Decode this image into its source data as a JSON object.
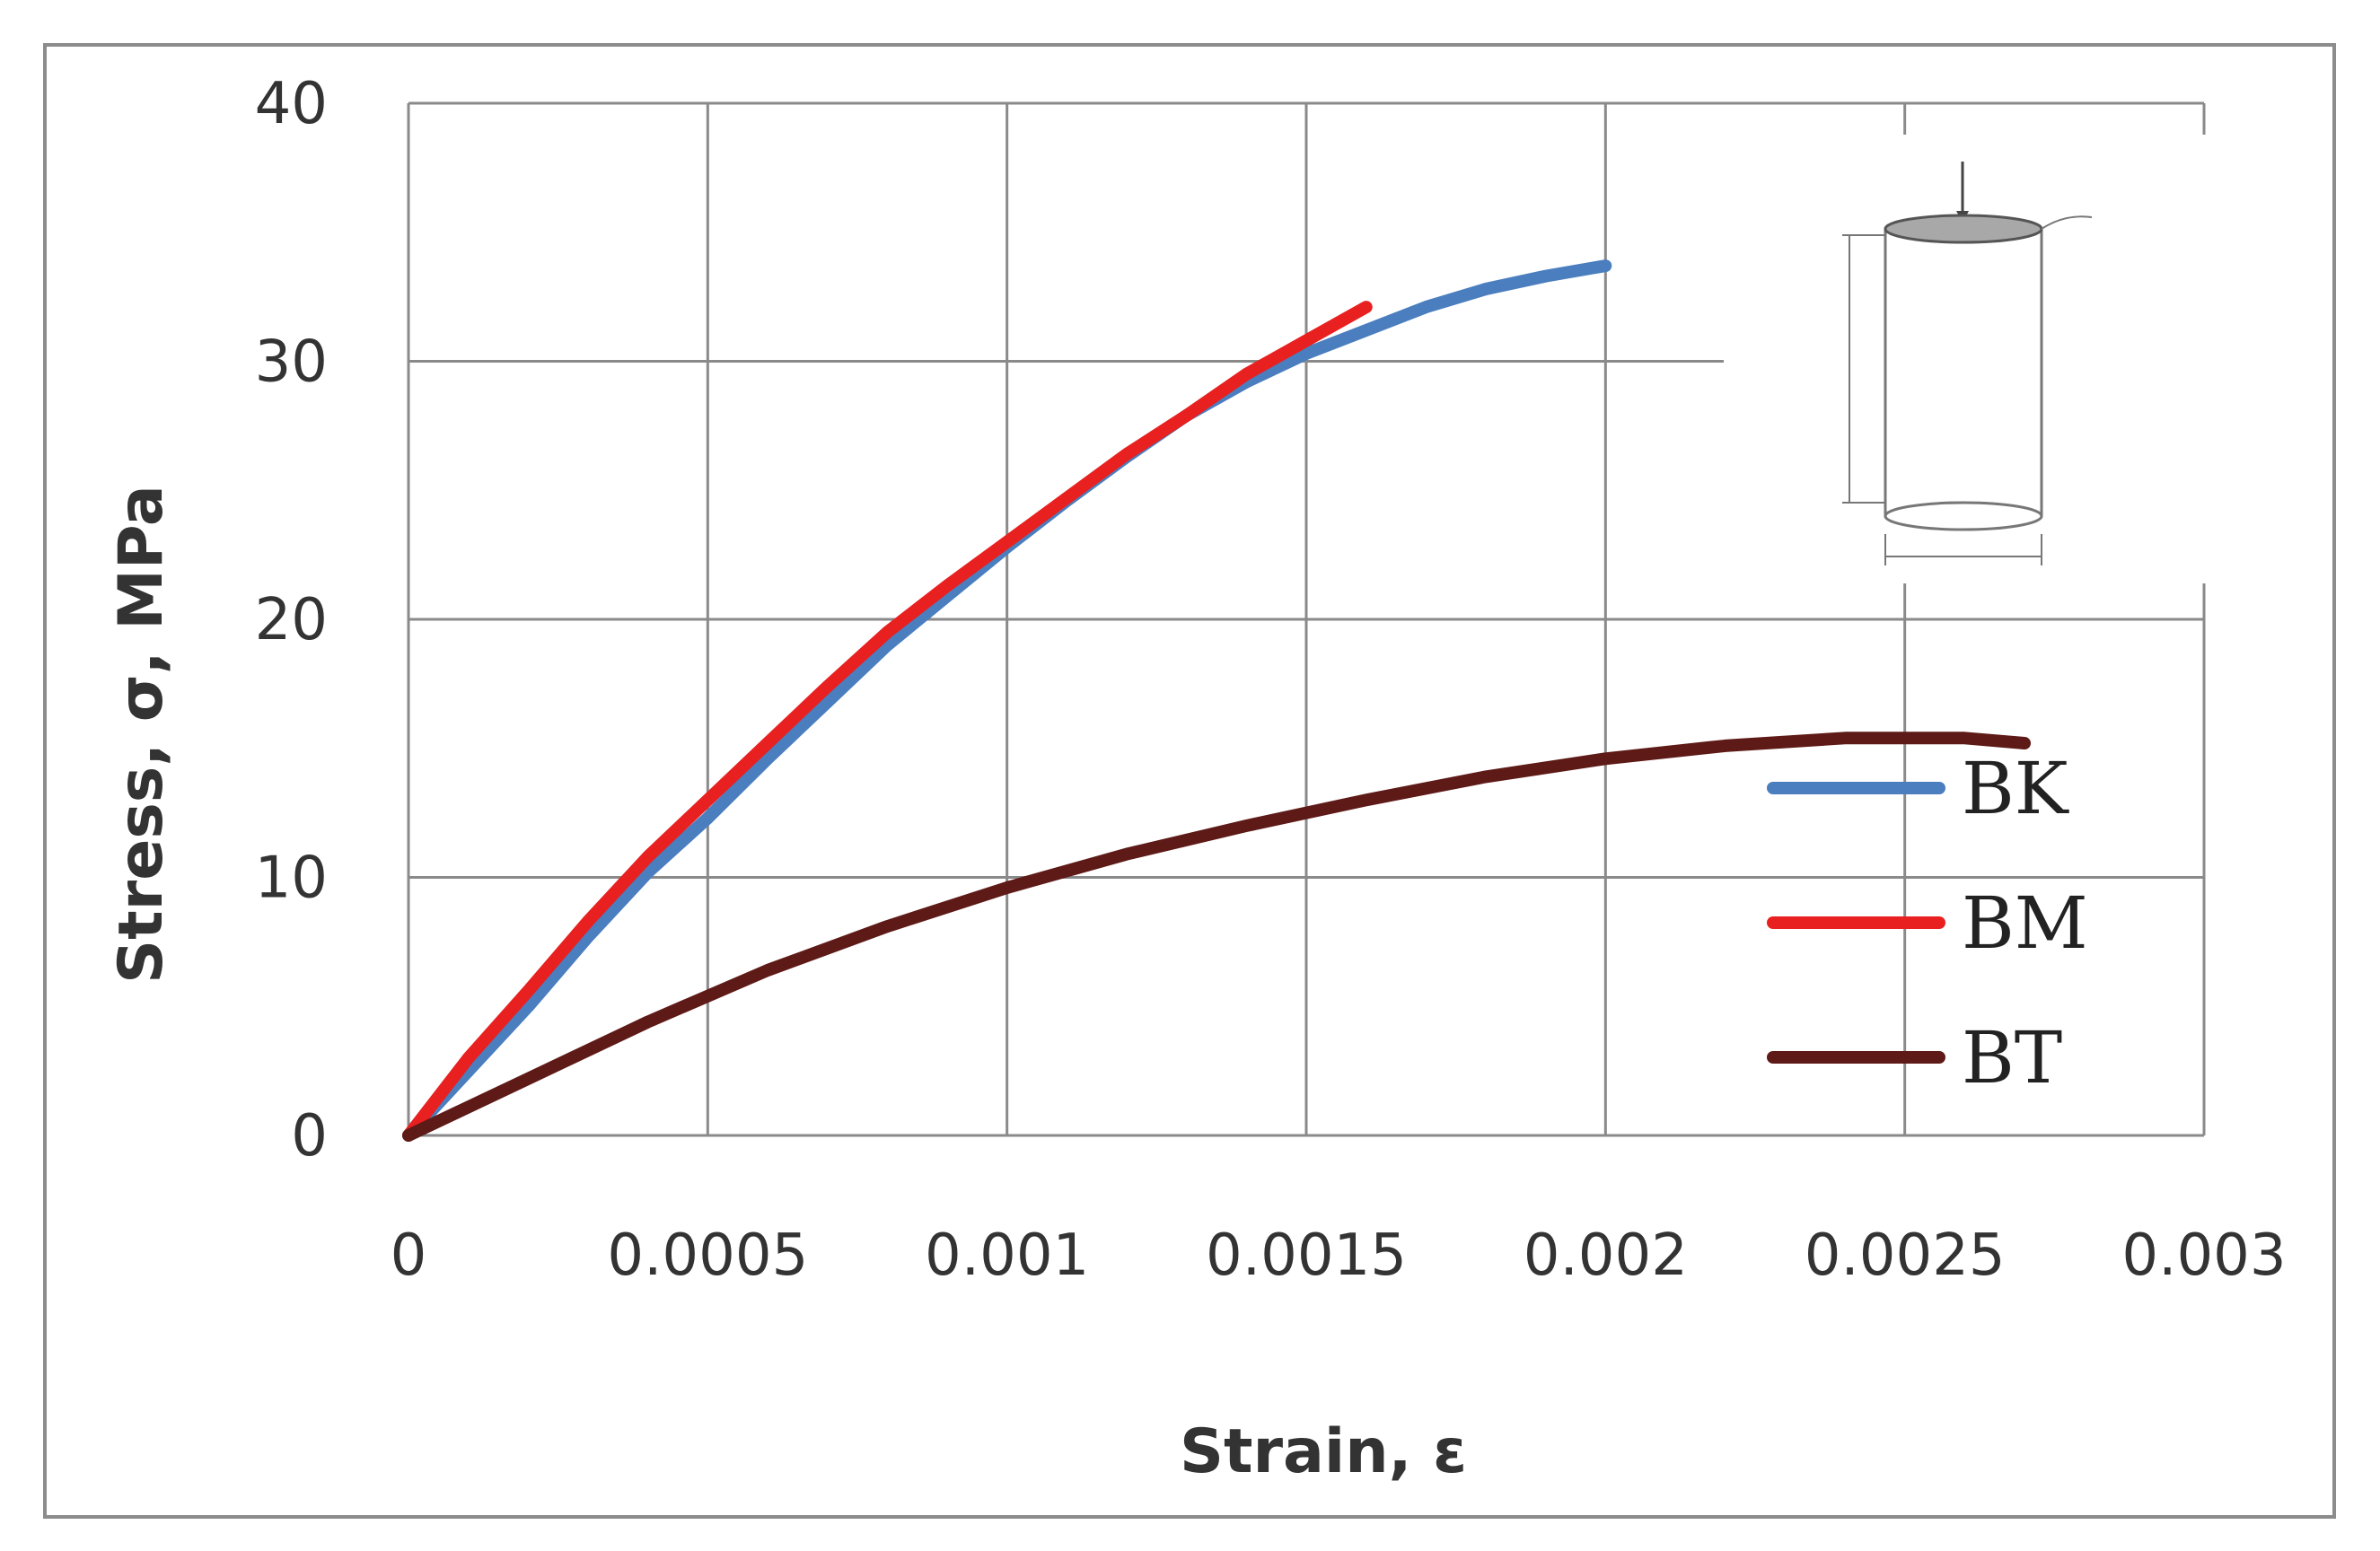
{
  "chart_data": {
    "type": "line",
    "xlabel": "Strain, ε",
    "ylabel": "Stress, σ, MPa",
    "xlim": [
      0,
      0.003
    ],
    "ylim": [
      0,
      40
    ],
    "x_ticks": [
      "0",
      "0.0005",
      "0.001",
      "0.0015",
      "0.002",
      "0.0025",
      "0.003"
    ],
    "y_ticks": [
      "0",
      "10",
      "20",
      "30",
      "40"
    ],
    "grid": true,
    "legend_position": "right",
    "series": [
      {
        "name": "BK",
        "color": "#4a7ebf",
        "x": [
          0,
          0.0001,
          0.0002,
          0.0003,
          0.0004,
          0.0005,
          0.0006,
          0.0007,
          0.0008,
          0.0009,
          0.001,
          0.0011,
          0.0012,
          0.0013,
          0.0014,
          0.0015,
          0.0016,
          0.0017,
          0.0018,
          0.0019,
          0.002
        ],
        "y": [
          0,
          2.5,
          5,
          7.7,
          10.2,
          12.3,
          14.6,
          16.8,
          19.0,
          20.9,
          22.8,
          24.6,
          26.3,
          27.9,
          29.2,
          30.3,
          31.2,
          32.1,
          32.8,
          33.3,
          33.7
        ]
      },
      {
        "name": "BM",
        "color": "#e82020",
        "x": [
          0,
          0.0001,
          0.0002,
          0.0003,
          0.0004,
          0.0005,
          0.0006,
          0.0007,
          0.0008,
          0.0009,
          0.001,
          0.0011,
          0.0012,
          0.0013,
          0.0014,
          0.0015,
          0.0016
        ],
        "y": [
          0,
          3.0,
          5.6,
          8.3,
          10.8,
          13.0,
          15.2,
          17.4,
          19.5,
          21.3,
          23.0,
          24.7,
          26.4,
          27.9,
          29.5,
          30.8,
          32.1
        ]
      },
      {
        "name": "BT",
        "color": "#5e1a17",
        "x": [
          0,
          0.0002,
          0.0004,
          0.0006,
          0.0008,
          0.001,
          0.0012,
          0.0014,
          0.0016,
          0.0018,
          0.002,
          0.0022,
          0.0024,
          0.0026,
          0.0027
        ],
        "y": [
          0,
          2.2,
          4.4,
          6.4,
          8.1,
          9.6,
          10.9,
          12.0,
          13.0,
          13.9,
          14.6,
          15.1,
          15.4,
          15.4,
          15.2
        ]
      }
    ]
  }
}
